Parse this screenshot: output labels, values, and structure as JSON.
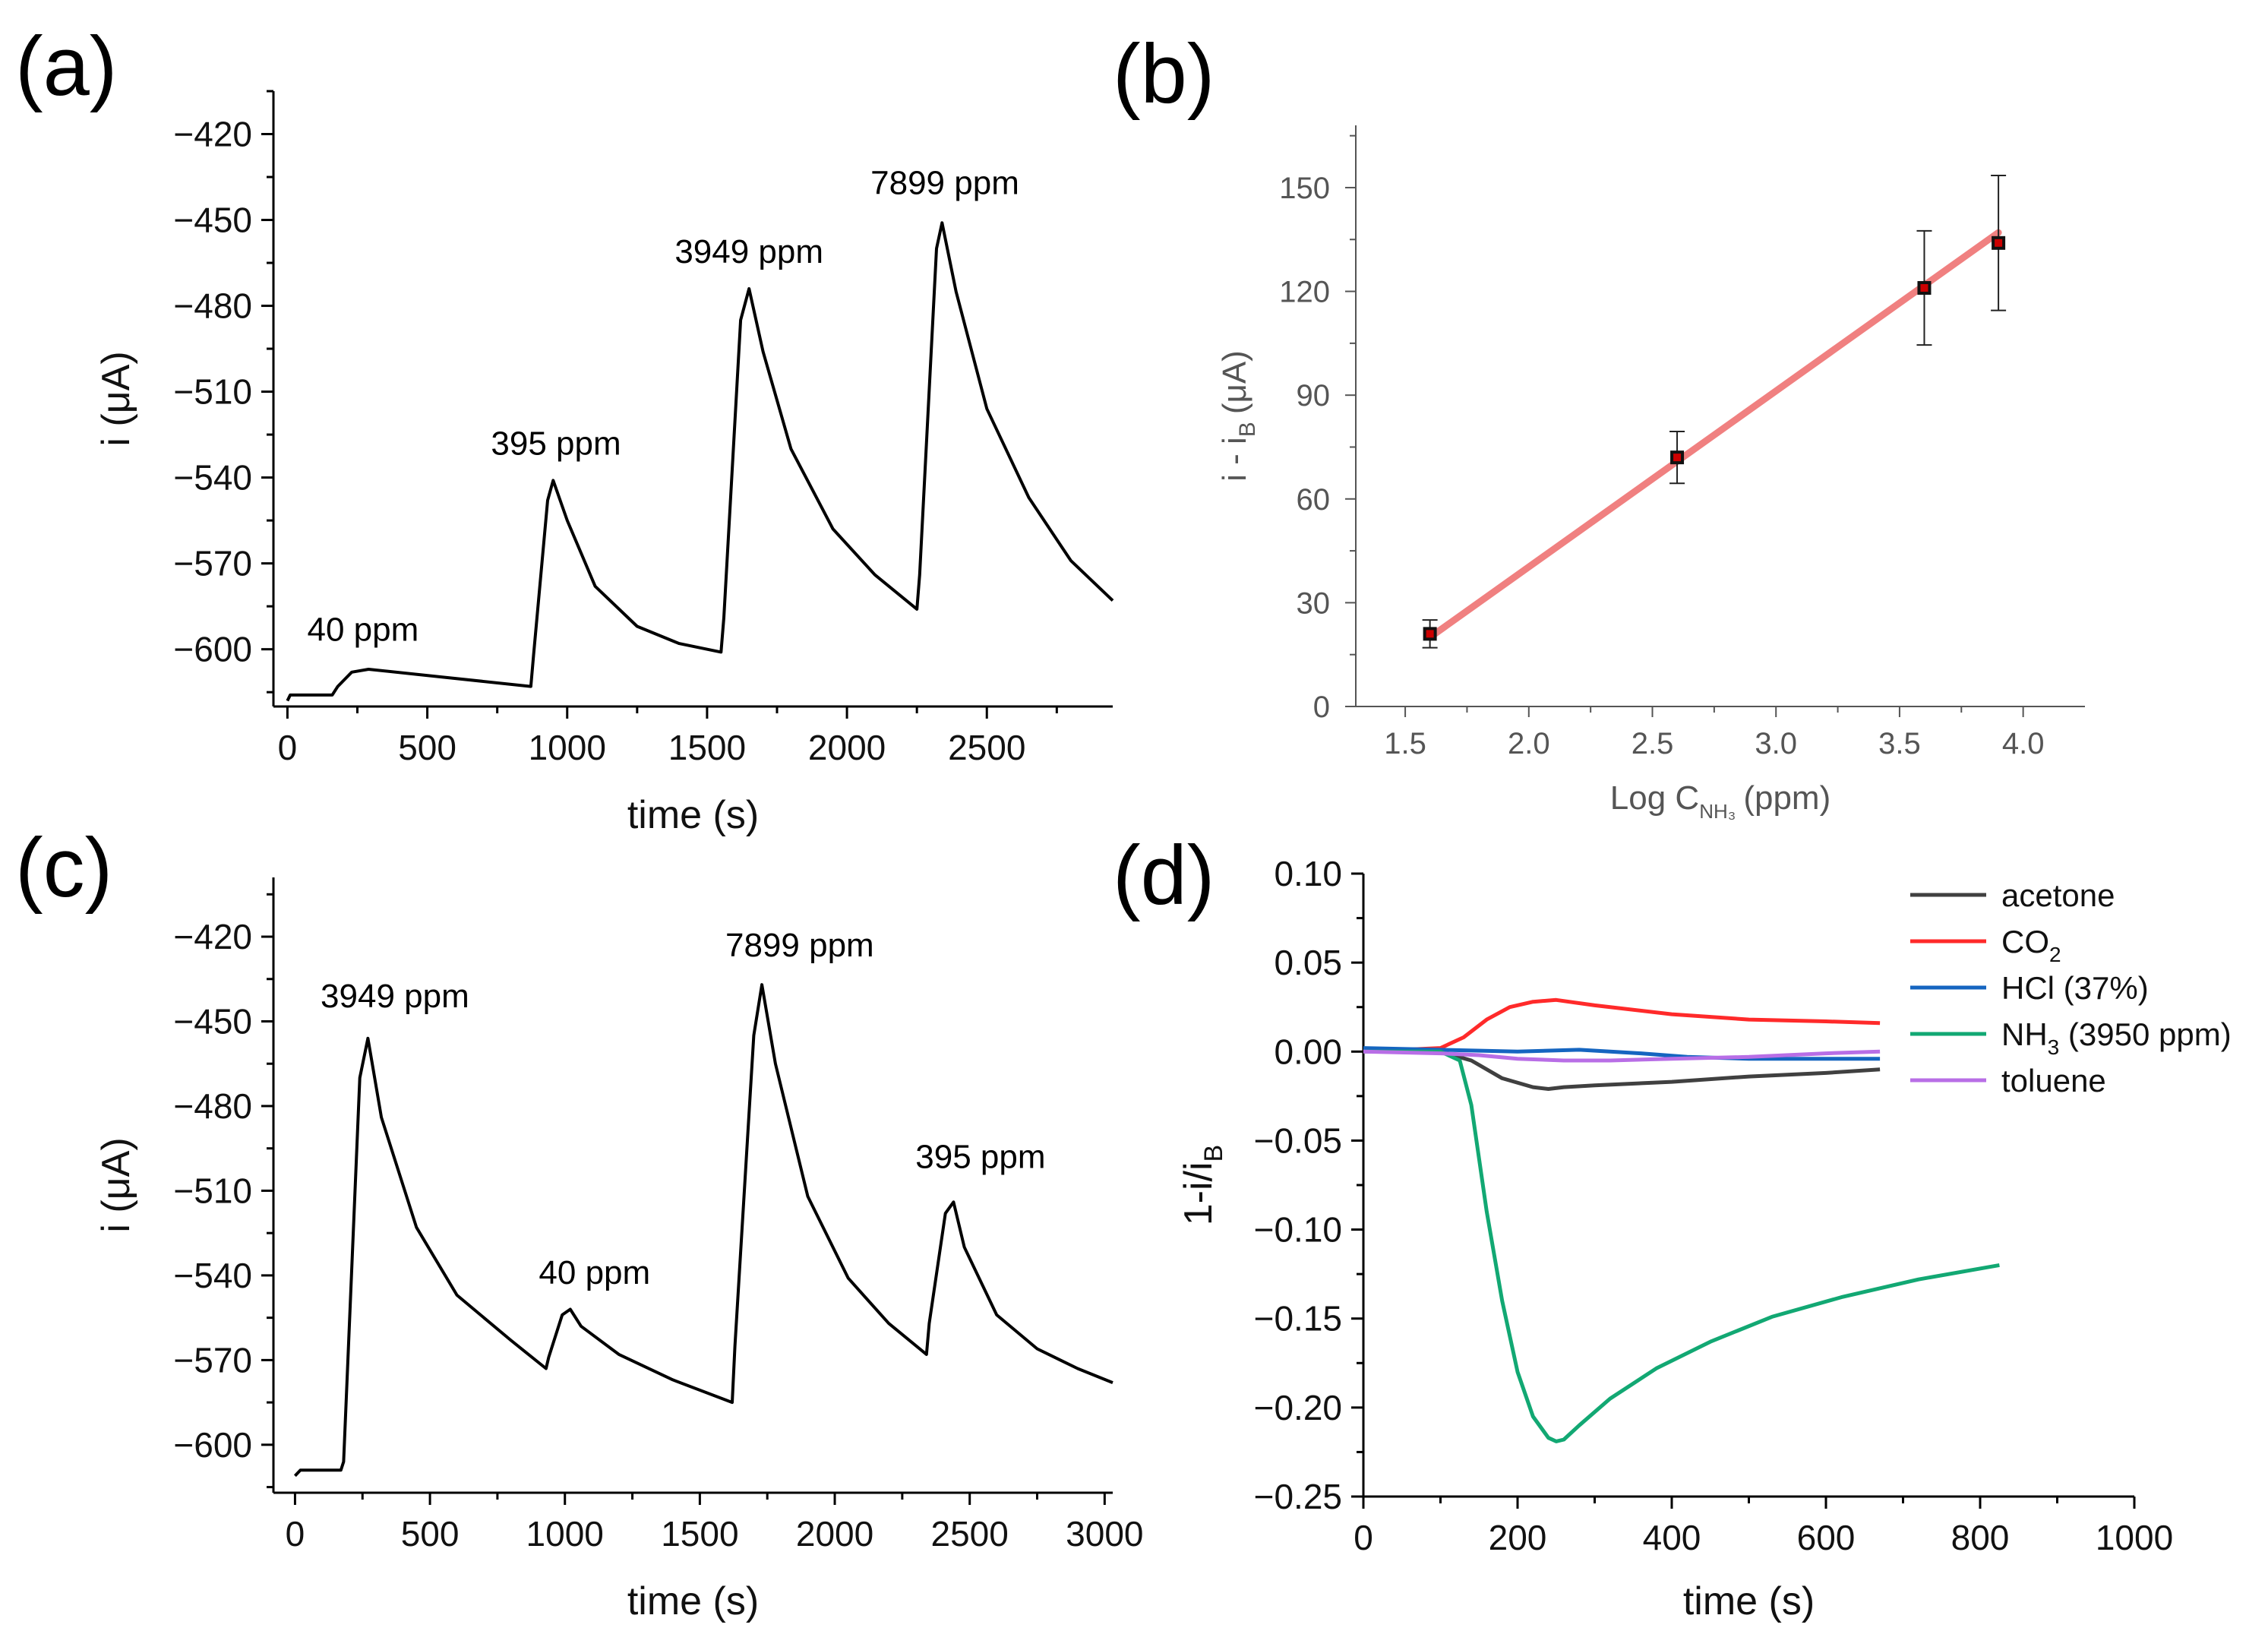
{
  "chart_data": [
    {
      "id": "a",
      "panel_label": "(a)",
      "type": "line",
      "xlabel": "time (s)",
      "ylabel": "i (μA)",
      "xlim": [
        -50,
        2950
      ],
      "ylim": [
        -620,
        -405
      ],
      "xticks": [
        0,
        500,
        1000,
        1500,
        2000,
        2500
      ],
      "yticks": [
        -600,
        -570,
        -540,
        -510,
        -480,
        -450,
        -420
      ],
      "series": [
        {
          "name": "current",
          "color": "#000000",
          "x": [
            0,
            10,
            160,
            180,
            230,
            290,
            870,
            880,
            930,
            950,
            1000,
            1100,
            1250,
            1400,
            1550,
            1560,
            1620,
            1650,
            1700,
            1800,
            1950,
            2100,
            2250,
            2260,
            2320,
            2340,
            2390,
            2500,
            2650,
            2800,
            2950
          ],
          "y": [
            -618,
            -616,
            -616,
            -613,
            -608,
            -607,
            -613,
            -602,
            -548,
            -541,
            -555,
            -578,
            -592,
            -598,
            -601,
            -589,
            -485,
            -474,
            -496,
            -530,
            -558,
            -574,
            -586,
            -574,
            -460,
            -451,
            -475,
            -516,
            -547,
            -569,
            -583
          ]
        }
      ],
      "annotations": [
        {
          "text": "40 ppm",
          "x": 270,
          "y": -597
        },
        {
          "text": "395 ppm",
          "x": 960,
          "y": -532
        },
        {
          "text": "3949 ppm",
          "x": 1650,
          "y": -465
        },
        {
          "text": "7899 ppm",
          "x": 2350,
          "y": -441
        }
      ]
    },
    {
      "id": "b",
      "panel_label": "(b)",
      "type": "scatter",
      "xlabel_main": "Log C",
      "xlabel_sub": "NH₃",
      "xlabel_end": "(ppm)",
      "ylabel_main": "i - i",
      "ylabel_sub": "B",
      "ylabel_end": "(μA)",
      "xlim": [
        1.3,
        4.25
      ],
      "ylim": [
        0,
        168
      ],
      "xticks": [
        1.5,
        2.0,
        2.5,
        3.0,
        3.5,
        4.0
      ],
      "xtick_labels": [
        "1.5",
        "2.0",
        "2.5",
        "3.0",
        "3.5",
        "4.0"
      ],
      "yticks": [
        0,
        30,
        60,
        90,
        120,
        150
      ],
      "points": [
        {
          "x": 1.6,
          "y": 21,
          "err": 4
        },
        {
          "x": 2.6,
          "y": 72,
          "err": 7.5
        },
        {
          "x": 3.6,
          "y": 121,
          "err": 16.5
        },
        {
          "x": 3.9,
          "y": 134,
          "err": 19.5
        }
      ],
      "fit": {
        "x": [
          1.6,
          3.9
        ],
        "y": [
          20,
          137
        ],
        "color": "#f08080"
      },
      "marker_color": "#cc0000"
    },
    {
      "id": "c",
      "panel_label": "(c)",
      "type": "line",
      "xlabel": "time (s)",
      "ylabel": "i (μA)",
      "xlim": [
        -80,
        3030
      ],
      "ylim": [
        -617,
        -399
      ],
      "xticks": [
        0,
        500,
        1000,
        1500,
        2000,
        2500,
        3000
      ],
      "yticks": [
        -600,
        -570,
        -540,
        -510,
        -480,
        -450,
        -420
      ],
      "series": [
        {
          "name": "current",
          "color": "#000000",
          "x": [
            0,
            20,
            170,
            180,
            240,
            270,
            320,
            450,
            600,
            800,
            930,
            940,
            990,
            1020,
            1060,
            1200,
            1400,
            1620,
            1630,
            1700,
            1730,
            1780,
            1900,
            2050,
            2200,
            2340,
            2350,
            2410,
            2440,
            2480,
            2600,
            2750,
            2900,
            3030
          ],
          "y": [
            -611,
            -609,
            -609,
            -606,
            -470,
            -456,
            -484,
            -523,
            -547,
            -563,
            -573,
            -569,
            -554,
            -552,
            -558,
            -568,
            -577,
            -585,
            -565,
            -455,
            -437,
            -465,
            -512,
            -541,
            -557,
            -568,
            -557,
            -518,
            -514,
            -530,
            -554,
            -566,
            -573,
            -578
          ]
        }
      ],
      "annotations": [
        {
          "text": "3949 ppm",
          "x": 370,
          "y": -445
        },
        {
          "text": "40 ppm",
          "x": 1110,
          "y": -543
        },
        {
          "text": "7899 ppm",
          "x": 1870,
          "y": -427
        },
        {
          "text": "395 ppm",
          "x": 2540,
          "y": -502
        }
      ]
    },
    {
      "id": "d",
      "panel_label": "(d)",
      "type": "line",
      "xlabel": "time (s)",
      "ylabel_main": "1-i/i",
      "ylabel_sub": "B",
      "xlim": [
        0,
        1000
      ],
      "ylim": [
        -0.25,
        0.1
      ],
      "xticks": [
        0,
        200,
        400,
        600,
        800,
        1000
      ],
      "yticks": [
        -0.25,
        -0.2,
        -0.15,
        -0.1,
        -0.05,
        0.0,
        0.05,
        0.1
      ],
      "ytick_labels": [
        "-0.25",
        "-0.20",
        "-0.15",
        "-0.10",
        "-0.05",
        "0.00",
        "0.05",
        "0.10"
      ],
      "series": [
        {
          "name": "acetone",
          "legend_main": "acetone",
          "legend_sub": "",
          "legend_end": "",
          "color": "#404040",
          "x": [
            0,
            100,
            140,
            180,
            220,
            240,
            260,
            300,
            400,
            500,
            600,
            670
          ],
          "y": [
            0.001,
            0.0,
            -0.005,
            -0.015,
            -0.02,
            -0.021,
            -0.02,
            -0.019,
            -0.017,
            -0.014,
            -0.012,
            -0.01
          ]
        },
        {
          "name": "CO2",
          "legend_main": "CO",
          "legend_sub": "2",
          "legend_end": "",
          "color": "#ff2a2a",
          "x": [
            0,
            100,
            130,
            160,
            190,
            220,
            250,
            300,
            400,
            500,
            600,
            670
          ],
          "y": [
            0.0,
            0.002,
            0.008,
            0.018,
            0.025,
            0.028,
            0.029,
            0.026,
            0.021,
            0.018,
            0.017,
            0.016
          ]
        },
        {
          "name": "HCl (37%)",
          "legend_main": "HCl (37%)",
          "legend_sub": "",
          "legend_end": "",
          "color": "#1565c0",
          "x": [
            0,
            100,
            200,
            280,
            320,
            360,
            420,
            500,
            600,
            670
          ],
          "y": [
            0.002,
            0.001,
            0.0,
            0.001,
            0.0,
            -0.001,
            -0.003,
            -0.004,
            -0.004,
            -0.004
          ]
        },
        {
          "name": "NH3 (3950 ppm)",
          "legend_main": "NH",
          "legend_sub": "3",
          "legend_end": " (3950 ppm)",
          "color": "#12a873",
          "x": [
            0,
            100,
            125,
            140,
            160,
            180,
            200,
            220,
            240,
            250,
            260,
            280,
            320,
            380,
            450,
            530,
            620,
            720,
            825
          ],
          "y": [
            0.0,
            0.0,
            -0.005,
            -0.03,
            -0.09,
            -0.14,
            -0.18,
            -0.205,
            -0.217,
            -0.219,
            -0.218,
            -0.21,
            -0.195,
            -0.178,
            -0.163,
            -0.149,
            -0.138,
            -0.128,
            -0.12
          ]
        },
        {
          "name": "toluene",
          "legend_main": "toluene",
          "legend_sub": "",
          "legend_end": "",
          "color": "#b86ee6",
          "x": [
            0,
            100,
            150,
            200,
            260,
            320,
            400,
            500,
            600,
            670
          ],
          "y": [
            0.0,
            -0.001,
            -0.002,
            -0.004,
            -0.005,
            -0.005,
            -0.004,
            -0.003,
            -0.001,
            0.0
          ]
        }
      ]
    }
  ]
}
